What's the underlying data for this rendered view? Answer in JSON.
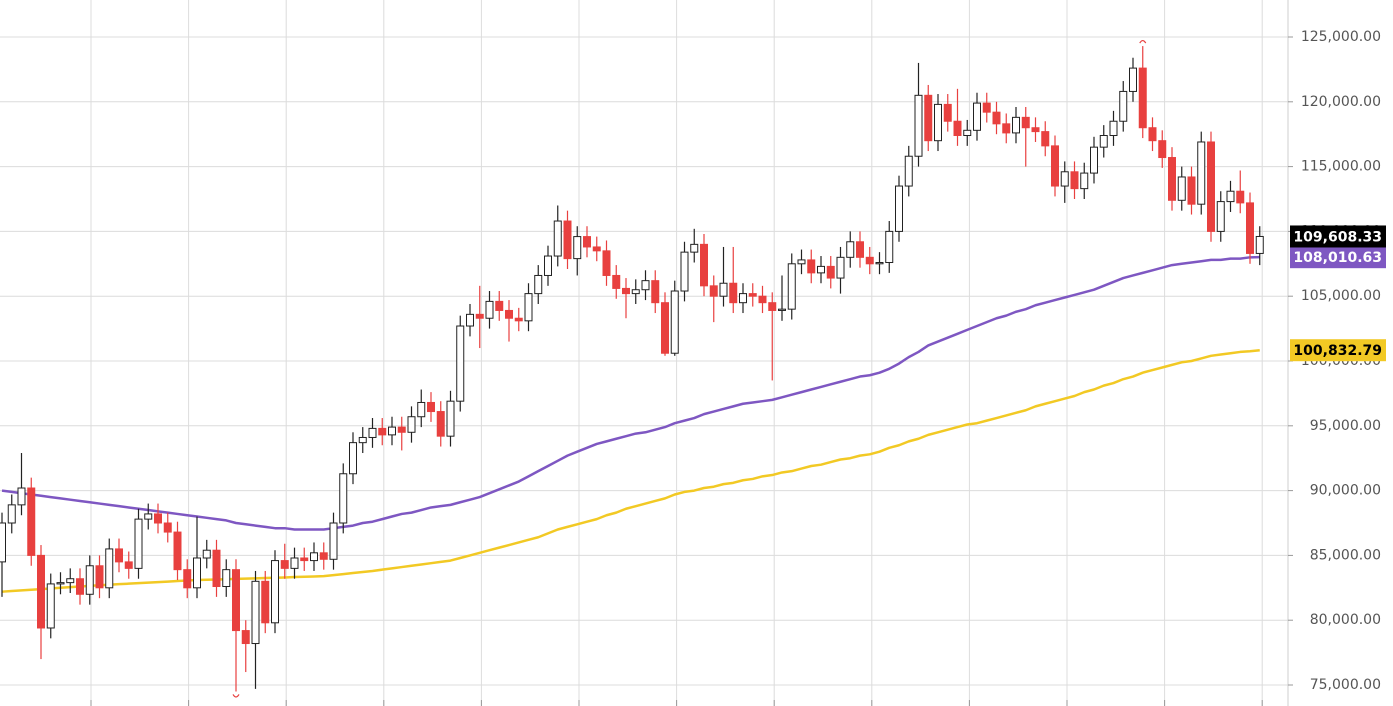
{
  "chart_data": {
    "type": "candlestick",
    "ylim": [
      73380,
      127855
    ],
    "yticks": [
      {
        "value": 75000,
        "label": "75,000.00"
      },
      {
        "value": 80000,
        "label": "80,000.00"
      },
      {
        "value": 85000,
        "label": "85,000.00"
      },
      {
        "value": 90000,
        "label": "90,000.00"
      },
      {
        "value": 95000,
        "label": "95,000.00"
      },
      {
        "value": 100000,
        "label": "100,000.00"
      },
      {
        "value": 105000,
        "label": "105,000.00"
      },
      {
        "value": 110000,
        "label": "110,000.00"
      },
      {
        "value": 115000,
        "label": "115,000.00"
      },
      {
        "value": 120000,
        "label": "120,000.00"
      },
      {
        "value": 125000,
        "label": "125,000.00"
      }
    ],
    "grid": true,
    "candles": {
      "up_color": "#222222",
      "down_color": "#e8403f",
      "label_color": "#000000",
      "last_value_label": "109,608.33",
      "open": [
        84500,
        87500,
        88900,
        90200,
        85000,
        79400,
        82800,
        82900,
        83200,
        82000,
        84200,
        82500,
        85500,
        84500,
        84000,
        87800,
        88200,
        87500,
        86800,
        83900,
        82500,
        84800,
        85400,
        82600,
        83900,
        79200,
        78200,
        83000,
        79800,
        84600,
        84000,
        84800,
        84600,
        85200,
        84700,
        87500,
        91300,
        93700,
        94100,
        94800,
        94300,
        94900,
        94500,
        95700,
        96800,
        96100,
        94200,
        96900,
        102700,
        103600,
        103300,
        104600,
        103900,
        103300,
        103100,
        105200,
        106600,
        108100,
        110800,
        107900,
        109600,
        108800,
        108500,
        106600,
        105600,
        105200,
        105500,
        106200,
        104500,
        100600,
        105400,
        108400,
        109000,
        105800,
        105000,
        106000,
        104500,
        105200,
        105000,
        104500,
        103900,
        104000,
        107500,
        107800,
        106800,
        107300,
        106400,
        108000,
        109200,
        108000,
        107500,
        107600,
        110000,
        113500,
        115800,
        120500,
        117000,
        119800,
        118500,
        117400,
        117800,
        119900,
        119200,
        118300,
        117600,
        118800,
        118000,
        117700,
        116600,
        113500,
        114600,
        113300,
        114500,
        116500,
        117400,
        118500,
        120800,
        122600,
        118000,
        117000,
        115700,
        112400,
        114200,
        112100,
        116900,
        110000,
        112300,
        113100,
        112200,
        108300
      ],
      "high": [
        88300,
        89700,
        92900,
        91000,
        85800,
        83600,
        83700,
        84000,
        84000,
        85000,
        85000,
        86300,
        86300,
        85300,
        88600,
        89000,
        89000,
        88300,
        87600,
        84700,
        88000,
        86200,
        86200,
        84700,
        84700,
        80000,
        83800,
        83800,
        85400,
        85900,
        85600,
        85600,
        86000,
        86000,
        88300,
        92100,
        94500,
        94900,
        95600,
        95600,
        95700,
        95700,
        96500,
        97800,
        97600,
        96900,
        97700,
        103500,
        104400,
        105800,
        105400,
        105400,
        104700,
        104100,
        106000,
        107400,
        108900,
        112000,
        111600,
        110400,
        110400,
        109600,
        109300,
        107400,
        106400,
        106300,
        107000,
        107000,
        105300,
        106200,
        109200,
        110200,
        109800,
        106600,
        108800,
        108800,
        106000,
        106000,
        105800,
        105300,
        106600,
        108300,
        108600,
        108600,
        108100,
        108100,
        108800,
        110000,
        110000,
        108800,
        108400,
        110800,
        114300,
        116600,
        123000,
        121300,
        120600,
        120600,
        121000,
        118600,
        120700,
        120700,
        120000,
        119100,
        119600,
        119600,
        118800,
        118500,
        117400,
        115400,
        115400,
        115300,
        117300,
        118200,
        119300,
        121600,
        123400,
        124300,
        118800,
        117800,
        116500,
        115000,
        115000,
        117700,
        117700,
        113100,
        113900,
        114700,
        113000,
        110400
      ],
      "low": [
        81800,
        86700,
        88100,
        84200,
        77000,
        78600,
        82000,
        82100,
        81200,
        81200,
        81700,
        81700,
        83700,
        83200,
        83200,
        87000,
        86700,
        86000,
        83100,
        81700,
        81700,
        84000,
        81800,
        81800,
        74500,
        76000,
        74700,
        79000,
        79000,
        83200,
        83200,
        83800,
        83800,
        83900,
        83900,
        86700,
        90500,
        92900,
        93300,
        93500,
        93500,
        93100,
        93700,
        94900,
        95300,
        93400,
        93400,
        96100,
        101900,
        101000,
        102500,
        103100,
        101500,
        102300,
        102300,
        104400,
        105800,
        107300,
        107100,
        106600,
        108000,
        107700,
        105800,
        104800,
        103300,
        104400,
        104700,
        103700,
        100400,
        100400,
        104600,
        107600,
        105000,
        103000,
        104200,
        103700,
        103700,
        104200,
        103700,
        98500,
        103100,
        103200,
        106700,
        106000,
        106000,
        105600,
        105200,
        107200,
        107200,
        106700,
        106700,
        106800,
        109200,
        112700,
        115000,
        116200,
        116200,
        117700,
        116600,
        116600,
        117000,
        118400,
        117500,
        116800,
        116800,
        115000,
        116900,
        115800,
        112700,
        112200,
        112500,
        112500,
        113700,
        115700,
        116600,
        117700,
        120000,
        117200,
        116200,
        114900,
        111600,
        111600,
        111300,
        111300,
        109200,
        109200,
        111500,
        111400,
        107500,
        107400
      ],
      "close": [
        87500,
        88900,
        90200,
        85000,
        79400,
        82800,
        82900,
        83200,
        82000,
        84200,
        82500,
        85500,
        84500,
        84000,
        87800,
        88200,
        87500,
        86800,
        83900,
        82500,
        84800,
        85400,
        82600,
        83900,
        79200,
        78200,
        83000,
        79800,
        84600,
        84000,
        84800,
        84600,
        85200,
        84700,
        87500,
        91300,
        93700,
        94100,
        94800,
        94300,
        94900,
        94500,
        95700,
        96800,
        96100,
        94200,
        96900,
        102700,
        103600,
        103300,
        104600,
        103900,
        103300,
        103100,
        105200,
        106600,
        108100,
        110800,
        107900,
        109600,
        108800,
        108500,
        106600,
        105600,
        105200,
        105500,
        106200,
        104500,
        100600,
        105400,
        108400,
        109000,
        105800,
        105000,
        106000,
        104500,
        105200,
        105000,
        104500,
        103900,
        104000,
        107500,
        107800,
        106800,
        107300,
        106400,
        108000,
        109200,
        108000,
        107500,
        107600,
        110000,
        113500,
        115800,
        120500,
        117000,
        119800,
        118500,
        117400,
        117800,
        119900,
        119200,
        118300,
        117600,
        118800,
        118000,
        117700,
        116600,
        113500,
        114600,
        113300,
        114500,
        116500,
        117400,
        118500,
        120800,
        122600,
        118000,
        117000,
        115700,
        112400,
        114200,
        112100,
        116900,
        110000,
        112300,
        113100,
        112200,
        108300,
        109608.33
      ]
    },
    "series": [
      {
        "color": "#7e57c2",
        "label_text_color": "#ffffff",
        "last_value_label": "108,010.63",
        "values": [
          90000,
          89900,
          89800,
          89700,
          89600,
          89500,
          89400,
          89300,
          89200,
          89100,
          89000,
          88900,
          88800,
          88700,
          88600,
          88500,
          88400,
          88300,
          88200,
          88100,
          88000,
          87900,
          87800,
          87700,
          87500,
          87400,
          87300,
          87200,
          87100,
          87100,
          87000,
          87000,
          87000,
          87000,
          87100,
          87200,
          87300,
          87500,
          87600,
          87800,
          88000,
          88200,
          88300,
          88500,
          88700,
          88800,
          88900,
          89100,
          89300,
          89500,
          89800,
          90100,
          90400,
          90700,
          91100,
          91500,
          91900,
          92300,
          92700,
          93000,
          93300,
          93600,
          93800,
          94000,
          94200,
          94400,
          94500,
          94700,
          94900,
          95200,
          95400,
          95600,
          95900,
          96100,
          96300,
          96500,
          96700,
          96800,
          96900,
          97000,
          97200,
          97400,
          97600,
          97800,
          98000,
          98200,
          98400,
          98600,
          98800,
          98900,
          99100,
          99400,
          99800,
          100300,
          100700,
          101200,
          101500,
          101800,
          102100,
          102400,
          102700,
          103000,
          103300,
          103500,
          103800,
          104000,
          104300,
          104500,
          104700,
          104900,
          105100,
          105300,
          105500,
          105800,
          106100,
          106400,
          106600,
          106800,
          107000,
          107200,
          107400,
          107500,
          107600,
          107700,
          107800,
          107800,
          107900,
          107900,
          108000,
          108010.63
        ]
      },
      {
        "color": "#f2c924",
        "label_text_color": "#000000",
        "last_value_label": "100,832.79",
        "values": [
          82200,
          82250,
          82300,
          82350,
          82400,
          82450,
          82500,
          82550,
          82600,
          82650,
          82700,
          82740,
          82780,
          82820,
          82860,
          82900,
          82940,
          82980,
          83020,
          83060,
          83100,
          83120,
          83140,
          83160,
          83190,
          83210,
          83230,
          83260,
          83280,
          83300,
          83330,
          83350,
          83370,
          83400,
          83480,
          83560,
          83640,
          83720,
          83800,
          83900,
          84000,
          84100,
          84200,
          84300,
          84400,
          84500,
          84600,
          84800,
          85000,
          85200,
          85400,
          85600,
          85800,
          86000,
          86200,
          86400,
          86700,
          87000,
          87200,
          87400,
          87600,
          87800,
          88100,
          88300,
          88600,
          88800,
          89000,
          89200,
          89400,
          89700,
          89900,
          90000,
          90200,
          90300,
          90500,
          90600,
          90800,
          90900,
          91100,
          91200,
          91400,
          91500,
          91700,
          91900,
          92000,
          92200,
          92400,
          92500,
          92700,
          92800,
          93000,
          93300,
          93500,
          93800,
          94000,
          94300,
          94500,
          94700,
          94900,
          95100,
          95200,
          95400,
          95600,
          95800,
          96000,
          96200,
          96500,
          96700,
          96900,
          97100,
          97300,
          97600,
          97800,
          98100,
          98300,
          98600,
          98800,
          99100,
          99300,
          99500,
          99700,
          99900,
          100000,
          100200,
          100400,
          100500,
          100600,
          100700,
          100750,
          100832.79
        ]
      }
    ]
  }
}
